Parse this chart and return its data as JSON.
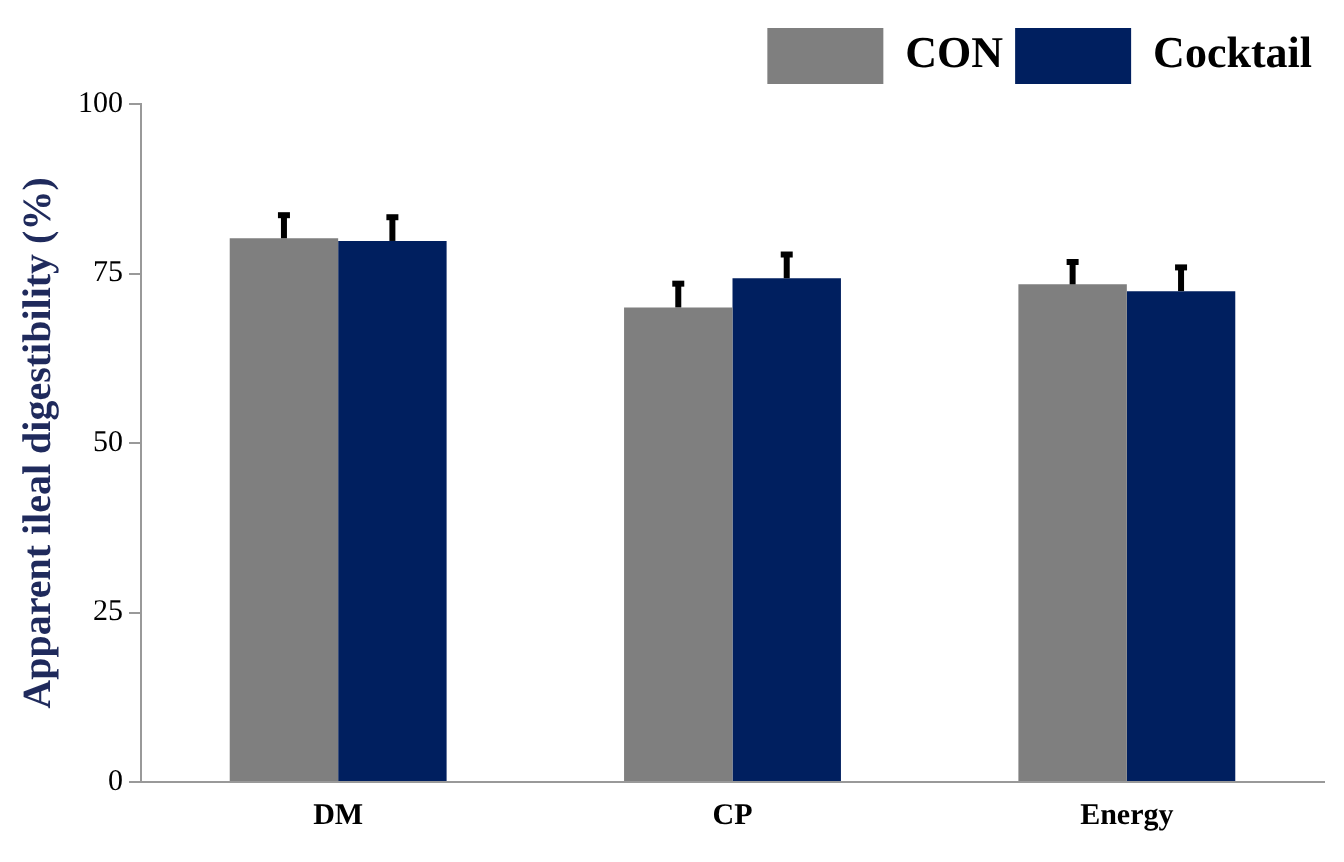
{
  "chart_data": {
    "type": "bar",
    "ylabel": "Apparent ileal digestibility (%)",
    "categories": [
      "DM",
      "CP",
      "Energy"
    ],
    "series": [
      {
        "name": "CON",
        "color": "#7f7f7f",
        "values": [
          80.2,
          70.0,
          73.4
        ],
        "errors": [
          [
            80.2,
            83.6
          ],
          [
            70.0,
            73.5
          ],
          [
            73.4,
            76.7
          ]
        ]
      },
      {
        "name": "Cocktail",
        "color": "#001f5f",
        "values": [
          79.8,
          74.3,
          72.4
        ],
        "errors": [
          [
            79.8,
            83.3
          ],
          [
            74.3,
            77.8
          ],
          [
            72.4,
            75.9
          ]
        ]
      }
    ],
    "ylim": [
      0,
      100
    ],
    "yticks": [
      0,
      25,
      50,
      75,
      100
    ],
    "grid": false,
    "legend": "top right"
  }
}
